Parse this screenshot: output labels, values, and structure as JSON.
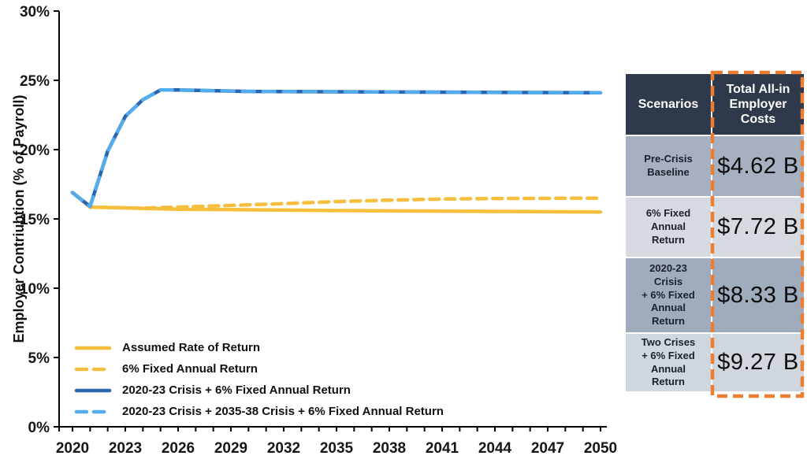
{
  "chart_data": {
    "type": "line",
    "title": "",
    "y_axis_title": "Employer Contriubtion (% of Payroll)",
    "x_range": [
      2020,
      2050
    ],
    "y_range": [
      0,
      30
    ],
    "grid": false,
    "legend_position": "bottom-left-inside",
    "y_ticks": [
      {
        "value": 0,
        "label": "0%"
      },
      {
        "value": 5,
        "label": "5%"
      },
      {
        "value": 10,
        "label": "10%"
      },
      {
        "value": 15,
        "label": "15%"
      },
      {
        "value": 20,
        "label": "20%"
      },
      {
        "value": 25,
        "label": "25%"
      },
      {
        "value": 30,
        "label": "30%"
      }
    ],
    "x_ticks": [
      {
        "value": 2020,
        "label": "2020"
      },
      {
        "value": 2023,
        "label": "2023"
      },
      {
        "value": 2026,
        "label": "2026"
      },
      {
        "value": 2029,
        "label": "2029"
      },
      {
        "value": 2032,
        "label": "2032"
      },
      {
        "value": 2035,
        "label": "2035"
      },
      {
        "value": 2038,
        "label": "2038"
      },
      {
        "value": 2041,
        "label": "2041"
      },
      {
        "value": 2044,
        "label": "2044"
      },
      {
        "value": 2047,
        "label": "2047"
      },
      {
        "value": 2050,
        "label": "2050"
      }
    ],
    "x_minor_tick_step": 1,
    "series": [
      {
        "name": "Assumed Rate of Return",
        "color": "#F6BE3D",
        "dash": null,
        "points": [
          [
            2020,
            16.9
          ],
          [
            2021,
            15.85
          ],
          [
            2026,
            15.7
          ],
          [
            2035,
            15.6
          ],
          [
            2050,
            15.5
          ]
        ]
      },
      {
        "name": "6% Fixed Annual Return",
        "color": "#F6BE3D",
        "dash": "12 8",
        "points": [
          [
            2020,
            16.9
          ],
          [
            2021,
            15.85
          ],
          [
            2024,
            15.78
          ],
          [
            2026,
            15.85
          ],
          [
            2029,
            15.97
          ],
          [
            2032,
            16.1
          ],
          [
            2035,
            16.25
          ],
          [
            2038,
            16.35
          ],
          [
            2041,
            16.43
          ],
          [
            2044,
            16.47
          ],
          [
            2050,
            16.5
          ]
        ]
      },
      {
        "name": "2020-23 Crisis + 6% Fixed Annual Return",
        "color": "#2A65AF",
        "dash": null,
        "points": [
          [
            2020,
            16.9
          ],
          [
            2021,
            15.9
          ],
          [
            2022,
            19.9
          ],
          [
            2023,
            22.4
          ],
          [
            2024,
            23.6
          ],
          [
            2025,
            24.3
          ],
          [
            2026,
            24.3
          ],
          [
            2030,
            24.2
          ],
          [
            2050,
            24.1
          ]
        ]
      },
      {
        "name": "2020-23 Crisis + 2035-38 Crisis + 6% Fixed Annual Return",
        "color": "#53ACEC",
        "dash": "15 11",
        "points": [
          [
            2020,
            16.9
          ],
          [
            2021,
            15.9
          ],
          [
            2022,
            19.9
          ],
          [
            2023,
            22.4
          ],
          [
            2024,
            23.6
          ],
          [
            2025,
            24.3
          ],
          [
            2026,
            24.3
          ],
          [
            2030,
            24.2
          ],
          [
            2050,
            24.1
          ]
        ]
      }
    ]
  },
  "table": {
    "header": {
      "scenarios": "Scenarios",
      "costs": "Total All-in\nEmployer\nCosts"
    },
    "header_bg": "#2E3A4B",
    "highlight_color": "#ED7D31",
    "rows": [
      {
        "scenario": "Pre-Crisis\nBaseline",
        "value": "$4.62 B",
        "bg": "#A6B0C0"
      },
      {
        "scenario": "6% Fixed\nAnnual\nReturn",
        "value": "$7.72 B",
        "bg": "#D5D9E0"
      },
      {
        "scenario": "2020-23\nCrisis\n+ 6% Fixed\nAnnual\nReturn",
        "value": "$8.33 B",
        "bg": "#9FACBE"
      },
      {
        "scenario": "Two Crises\n+ 6% Fixed\nAnnual\nReturn",
        "value": "$9.27 B",
        "bg": "#D0D6DE"
      }
    ]
  }
}
